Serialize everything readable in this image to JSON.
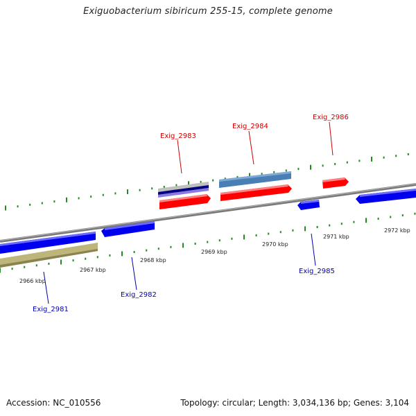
{
  "title": "Exiguobacterium sibiricum 255-15, complete genome",
  "footer": {
    "accession": "Accession: NC_010556",
    "summary": "Topology: circular; Length: 3,034,136 bp; Genes: 3,104"
  },
  "colors": {
    "forward_gene": "#ff0000",
    "reverse_gene": "#0000ff",
    "forward_label": "#cc0000",
    "reverse_label": "#0000aa",
    "tick": "#228b22",
    "backbone": "#808080"
  },
  "scale": {
    "unit": "kbp",
    "ticks": [
      2966,
      2967,
      2968,
      2969,
      2970,
      2971,
      2972
    ]
  },
  "genes": [
    {
      "name": "Exig_2981",
      "strand": "-",
      "labeled": true
    },
    {
      "name": "Exig_2982",
      "strand": "-",
      "labeled": true
    },
    {
      "name": "Exig_2983",
      "strand": "+",
      "labeled": true
    },
    {
      "name": "Exig_2984",
      "strand": "+",
      "labeled": true
    },
    {
      "name": "Exig_2985",
      "strand": "-",
      "labeled": true
    },
    {
      "name": "Exig_2986",
      "strand": "+",
      "labeled": true
    },
    {
      "name": "",
      "strand": "-",
      "labeled": false
    }
  ]
}
